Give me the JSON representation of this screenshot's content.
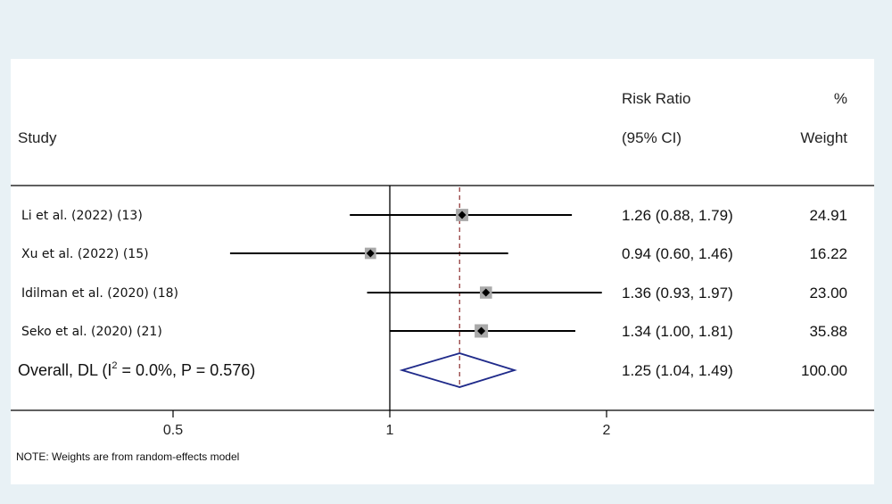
{
  "header": {
    "study": "Study",
    "risk_ratio_line1": "Risk Ratio",
    "risk_ratio_line2": "(95% CI)",
    "weight_line1": "%",
    "weight_line2": "Weight"
  },
  "note": "NOTE: Weights are from random-effects model",
  "chart_data": {
    "type": "forest",
    "x_scale": "log",
    "x_ticks": [
      0.5,
      1,
      2
    ],
    "x_tick_labels": [
      "0.5",
      "1",
      "2"
    ],
    "null_line": 1,
    "studies": [
      {
        "label": "Li et al. (2022) (13)",
        "rr": 1.26,
        "lo": 0.88,
        "hi": 1.79,
        "rr_text": "1.26 (0.88, 1.79)",
        "weight": 24.91,
        "weight_text": "24.91"
      },
      {
        "label": "Xu et al. (2022) (15)",
        "rr": 0.94,
        "lo": 0.6,
        "hi": 1.46,
        "rr_text": "0.94 (0.60, 1.46)",
        "weight": 16.22,
        "weight_text": "16.22"
      },
      {
        "label": "Idilman et al.  (2020) (18)",
        "rr": 1.36,
        "lo": 0.93,
        "hi": 1.97,
        "rr_text": "1.36 (0.93, 1.97)",
        "weight": 23.0,
        "weight_text": "23.00"
      },
      {
        "label": "Seko et al. (2020) (21)",
        "rr": 1.34,
        "lo": 1.0,
        "hi": 1.81,
        "rr_text": "1.34 (1.00, 1.81)",
        "weight": 35.88,
        "weight_text": "35.88"
      }
    ],
    "overall": {
      "label_prefix": "Overall, DL (I",
      "label_sup": "2",
      "label_suffix": " = 0.0%,  P = 0.576)",
      "rr": 1.25,
      "lo": 1.04,
      "hi": 1.49,
      "rr_text": "1.25 (1.04, 1.49)",
      "weight_text": "100.00"
    },
    "colors": {
      "diamond": "#1f2a8a",
      "pooled_line": "#8b2b2b",
      "marker_box": "#a9a9a9",
      "line": "#000000"
    }
  }
}
